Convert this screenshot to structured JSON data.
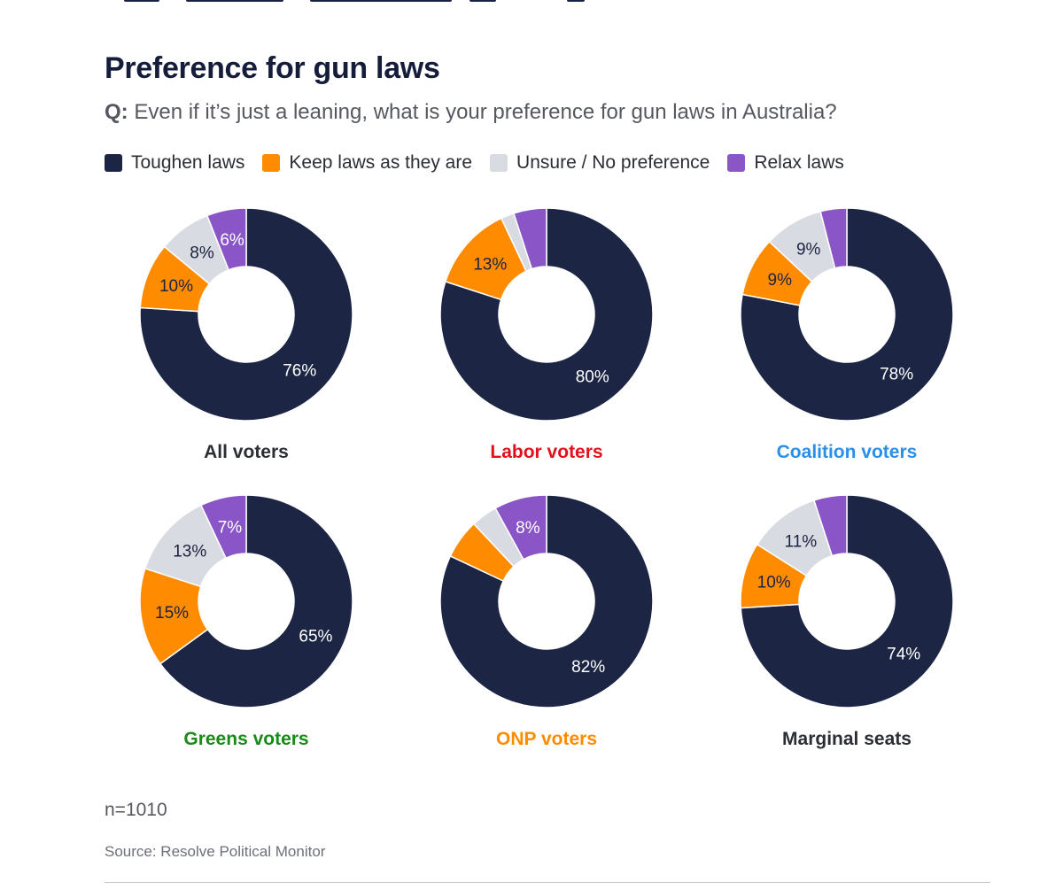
{
  "title": "Preference for gun laws",
  "question": {
    "prefix": "Q:",
    "text": " Even if it’s just a leaning, what is your preference for gun laws in Australia?"
  },
  "legend": [
    {
      "label": "Toughen laws",
      "color": "#1c2644"
    },
    {
      "label": "Keep laws as they are",
      "color": "#ff8c00"
    },
    {
      "label": "Unsure / No preference",
      "color": "#d8dbe2"
    },
    {
      "label": "Relax laws",
      "color": "#8a55c7"
    }
  ],
  "chart_data": [
    {
      "type": "pie",
      "title": "All voters",
      "title_color": "#2b2e35",
      "series": [
        {
          "label": "Toughen laws",
          "value": 76
        },
        {
          "label": "Keep laws as they are",
          "value": 10
        },
        {
          "label": "Unsure / No preference",
          "value": 8
        },
        {
          "label": "Relax laws",
          "value": 6
        }
      ],
      "data_labels": [
        "76%",
        "10%",
        "8%",
        "6%"
      ]
    },
    {
      "type": "pie",
      "title": "Labor voters",
      "title_color": "#e3101b",
      "series": [
        {
          "label": "Toughen laws",
          "value": 80
        },
        {
          "label": "Keep laws as they are",
          "value": 13
        },
        {
          "label": "Unsure / No preference",
          "value": 2
        },
        {
          "label": "Relax laws",
          "value": 5
        }
      ],
      "data_labels": [
        "80%",
        "13%",
        "",
        ""
      ]
    },
    {
      "type": "pie",
      "title": "Coalition voters",
      "title_color": "#2a8fe8",
      "series": [
        {
          "label": "Toughen laws",
          "value": 78
        },
        {
          "label": "Keep laws as they are",
          "value": 9
        },
        {
          "label": "Unsure / No preference",
          "value": 9
        },
        {
          "label": "Relax laws",
          "value": 4
        }
      ],
      "data_labels": [
        "78%",
        "9%",
        "9%",
        ""
      ]
    },
    {
      "type": "pie",
      "title": "Greens voters",
      "title_color": "#1a8a1a",
      "series": [
        {
          "label": "Toughen laws",
          "value": 65
        },
        {
          "label": "Keep laws as they are",
          "value": 15
        },
        {
          "label": "Unsure / No preference",
          "value": 13
        },
        {
          "label": "Relax laws",
          "value": 7
        }
      ],
      "data_labels": [
        "65%",
        "15%",
        "13%",
        "7%"
      ]
    },
    {
      "type": "pie",
      "title": "ONP voters",
      "title_color": "#ff8c00",
      "series": [
        {
          "label": "Toughen laws",
          "value": 82
        },
        {
          "label": "Keep laws as they are",
          "value": 6
        },
        {
          "label": "Unsure / No preference",
          "value": 4
        },
        {
          "label": "Relax laws",
          "value": 8
        }
      ],
      "data_labels": [
        "82%",
        "",
        "",
        "8%"
      ]
    },
    {
      "type": "pie",
      "title": "Marginal seats",
      "title_color": "#2b2e35",
      "series": [
        {
          "label": "Toughen laws",
          "value": 74
        },
        {
          "label": "Keep laws as they are",
          "value": 10
        },
        {
          "label": "Unsure / No preference",
          "value": 11
        },
        {
          "label": "Relax laws",
          "value": 5
        }
      ],
      "data_labels": [
        "74%",
        "10%",
        "11%",
        ""
      ]
    }
  ],
  "note": "n=1010",
  "source": "Source: Resolve Political Monitor"
}
